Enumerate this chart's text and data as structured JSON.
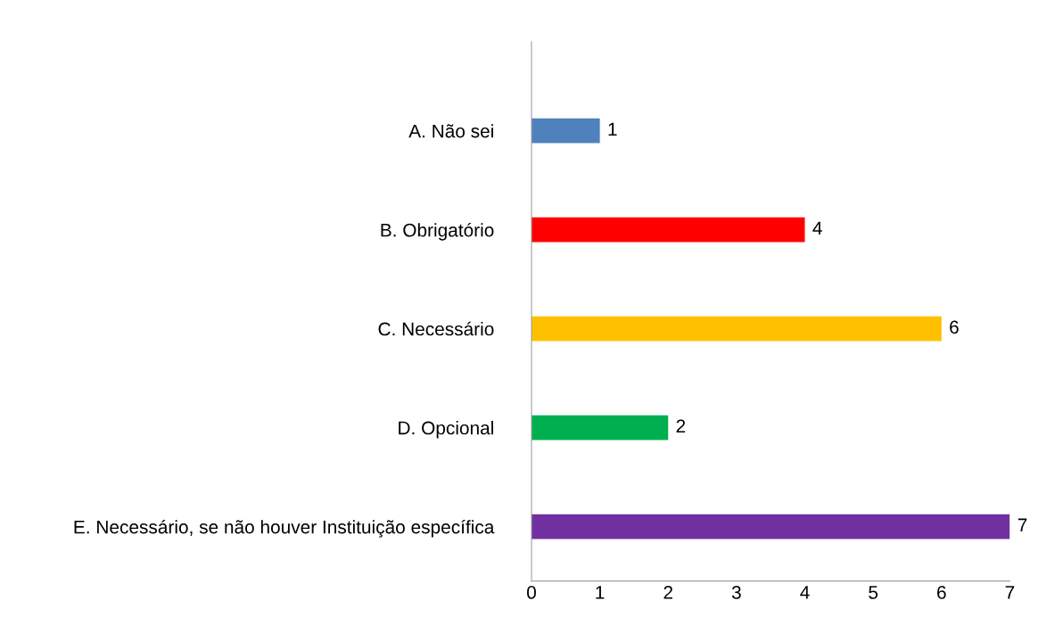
{
  "chart_data": {
    "type": "bar",
    "orientation": "horizontal",
    "categories": [
      "A. Não sei",
      "B. Obrigatório",
      "C. Necessário",
      "D. Opcional",
      "E. Necessário, se não houver Instituição específica"
    ],
    "values": [
      1,
      4,
      6,
      2,
      7
    ],
    "colors": [
      "#4f81bd",
      "#ff0000",
      "#ffc000",
      "#00b050",
      "#7030a0"
    ],
    "xlim": [
      0,
      7
    ],
    "xticks": [
      0,
      1,
      2,
      3,
      4,
      5,
      6,
      7
    ],
    "data_labels": true,
    "grid": false,
    "legend": false
  }
}
